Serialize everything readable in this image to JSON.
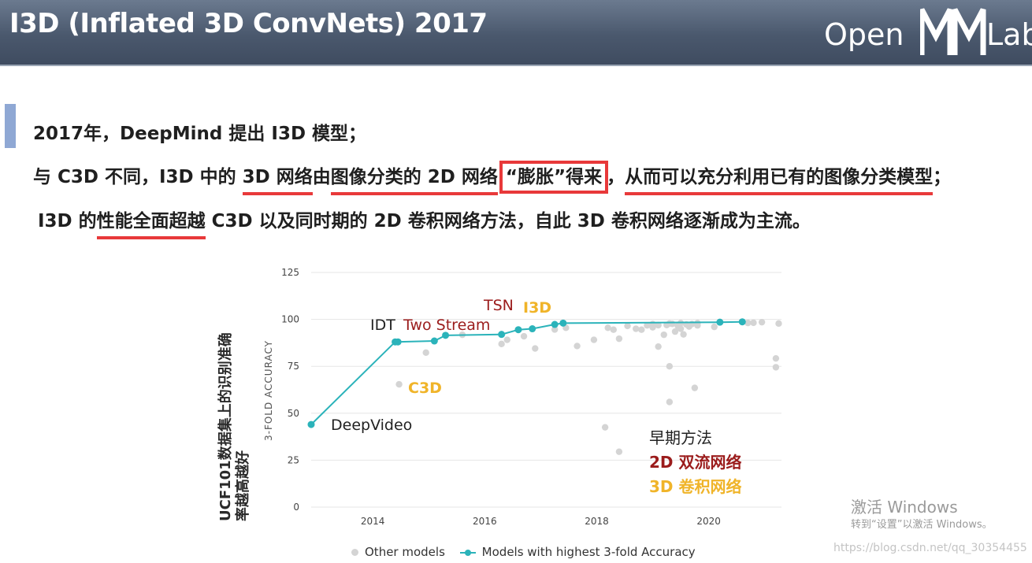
{
  "header": {
    "title": "I3D (Inflated 3D ConvNets) 2017",
    "logo_left": "Open",
    "logo_right": "Lab"
  },
  "body": {
    "line1": "2017年，DeepMind 提出 I3D 模型；",
    "line2": {
      "p1": "与 C3D 不同，I3D 中的 ",
      "p2": "3D 网络",
      "p3": "由",
      "p4": "图像分类的 2D 网络",
      "p5": "“膨胀”得来",
      "p6": "，",
      "p7": "从而可以充分利用已有的图像分类模型",
      "p8": "；"
    },
    "line3": {
      "p1": "I3D 的",
      "p2": "性能全面超越",
      "p3": " C3D 以及同时期的 2D 卷积网络方法，自此 3D 卷积网络逐渐成为主流。"
    }
  },
  "chart_data": {
    "type": "scatter",
    "ylabel": "3-FOLD ACCURACY",
    "ylabel_annotation": "UCF101数据集上的识别准确率越高越好",
    "xlim": [
      2012.9,
      2021.3
    ],
    "ylim": [
      0,
      125
    ],
    "x_ticks": [
      "2014",
      "2016",
      "2018",
      "2020"
    ],
    "y_ticks": [
      "0",
      "25",
      "50",
      "75",
      "100",
      "125"
    ],
    "series": [
      {
        "name": "Models with highest 3-fold Accuracy",
        "color": "#2bb3ba",
        "x": [
          2012.9,
          2014.4,
          2014.45,
          2015.1,
          2015.3,
          2016.3,
          2016.6,
          2016.85,
          2017.25,
          2017.4,
          2020.2,
          2020.6
        ],
        "y": [
          44,
          88,
          88,
          88.5,
          91.5,
          92,
          94.5,
          95,
          97.3,
          98,
          98.5,
          98.7
        ]
      },
      {
        "name": "Other models",
        "color": "#d4d4d4",
        "x": [
          2014.47,
          2014.95,
          2015.6,
          2016.3,
          2016.4,
          2016.7,
          2016.9,
          2017.25,
          2017.45,
          2017.65,
          2017.95,
          2018.2,
          2018.3,
          2018.4,
          2018.55,
          2018.7,
          2018.9,
          2019.0,
          2019.1,
          2019.2,
          2019.25,
          2019.3,
          2019.35,
          2019.45,
          2019.5,
          2019.55,
          2019.6,
          2019.65,
          2019.7,
          2019.8,
          2019.3,
          2019.3,
          2019.75,
          2019.5,
          2019.4,
          2019.1,
          2019.8,
          2018.15,
          2018.4,
          2020.1,
          2020.7,
          2020.8,
          2020.95,
          2021.2,
          2021.2,
          2021.25,
          2019.0,
          2018.8
        ],
        "y": [
          65.4,
          82.3,
          91.8,
          86.9,
          89.1,
          91.0,
          84.5,
          94.6,
          95.5,
          85.8,
          89.1,
          95.5,
          94.5,
          89.7,
          96.5,
          95.0,
          96.8,
          97.5,
          96.9,
          91.8,
          97.0,
          97.8,
          97.6,
          96.5,
          95.0,
          92.0,
          97.3,
          96.2,
          97.5,
          98.0,
          75.0,
          56.0,
          63.5,
          98.0,
          93.5,
          85.5,
          96.8,
          42.5,
          29.5,
          96.0,
          98.1,
          98.2,
          98.5,
          79.2,
          74.5,
          97.8,
          95.8,
          94.5
        ]
      }
    ],
    "annotations": [
      {
        "text": "DeepVideo",
        "color": "#222222"
      },
      {
        "text": "IDT",
        "color": "#222222"
      },
      {
        "text": "Two Stream",
        "color": "#9b1c1c"
      },
      {
        "text": "TSN",
        "color": "#9b1c1c"
      },
      {
        "text": "I3D",
        "color": "#f0b429"
      },
      {
        "text": "C3D",
        "color": "#f0b429"
      }
    ],
    "legend_text": [
      {
        "text": "早期方法",
        "color": "#222222"
      },
      {
        "text": "2D 双流网络",
        "color": "#9b1c1c"
      },
      {
        "text": "3D 卷积网络",
        "color": "#f0b429"
      }
    ],
    "legend": {
      "position": "bottom",
      "other_label": "Other models",
      "best_label": "Models with highest 3-fold Accuracy"
    },
    "grid": true
  },
  "watermark": {
    "line1": "激活 Windows",
    "line2": "转到“设置”以激活 Windows。",
    "line3": "https://blog.csdn.net/qq_30354455"
  }
}
